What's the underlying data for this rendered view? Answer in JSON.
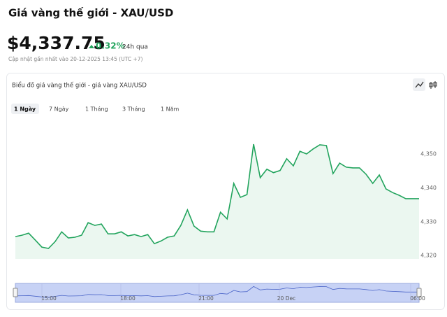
{
  "header": {
    "title": "Giá vàng thế giới - XAU/USD",
    "price": "$4,337.75",
    "change": "0.32%",
    "period": "24h qua",
    "updated": "Cập nhật gần nhất vào 20-12-2025 13:45 (UTC +7)"
  },
  "card": {
    "title": "Biểu đồ giá vàng thế giới - giá vàng XAU/USD",
    "tabs": [
      "1 Ngày",
      "7 Ngày",
      "1 Tháng",
      "3 Tháng",
      "1 Năm"
    ],
    "selected_tab": 0
  },
  "chart_data": {
    "type": "line",
    "color": "#22a45d",
    "values": [
      4325.6,
      4326.0,
      4326.6,
      4324.6,
      4322.5,
      4322.1,
      4324.1,
      4327.0,
      4325.2,
      4325.4,
      4326.0,
      4329.7,
      4328.9,
      4329.3,
      4326.4,
      4326.4,
      4327.0,
      4325.8,
      4326.2,
      4325.6,
      4326.2,
      4323.5,
      4324.3,
      4325.4,
      4325.8,
      4328.9,
      4333.5,
      4328.7,
      4327.2,
      4327.0,
      4327.0,
      4332.8,
      4330.8,
      4341.3,
      4337.2,
      4338.0,
      4352.9,
      4343.0,
      4345.5,
      4344.5,
      4345.1,
      4348.6,
      4346.5,
      4350.8,
      4350.0,
      4351.5,
      4352.7,
      4352.5,
      4344.2,
      4347.3,
      4346.1,
      4345.9,
      4345.9,
      4344.0,
      4341.3,
      4343.8,
      4339.7,
      4338.6,
      4337.8,
      4336.8,
      4336.8,
      4336.8
    ],
    "ylim": [
      4319,
      4362
    ],
    "yticks": [
      {
        "value": 4320,
        "label": "4,320"
      },
      {
        "value": 4330,
        "label": "4,330"
      },
      {
        "value": 4340,
        "label": "4,340"
      },
      {
        "value": 4350,
        "label": "4,350"
      }
    ],
    "navigator_labels": [
      "15:00",
      "18:00",
      "21:00",
      "20 Dec",
      "06:00"
    ]
  }
}
